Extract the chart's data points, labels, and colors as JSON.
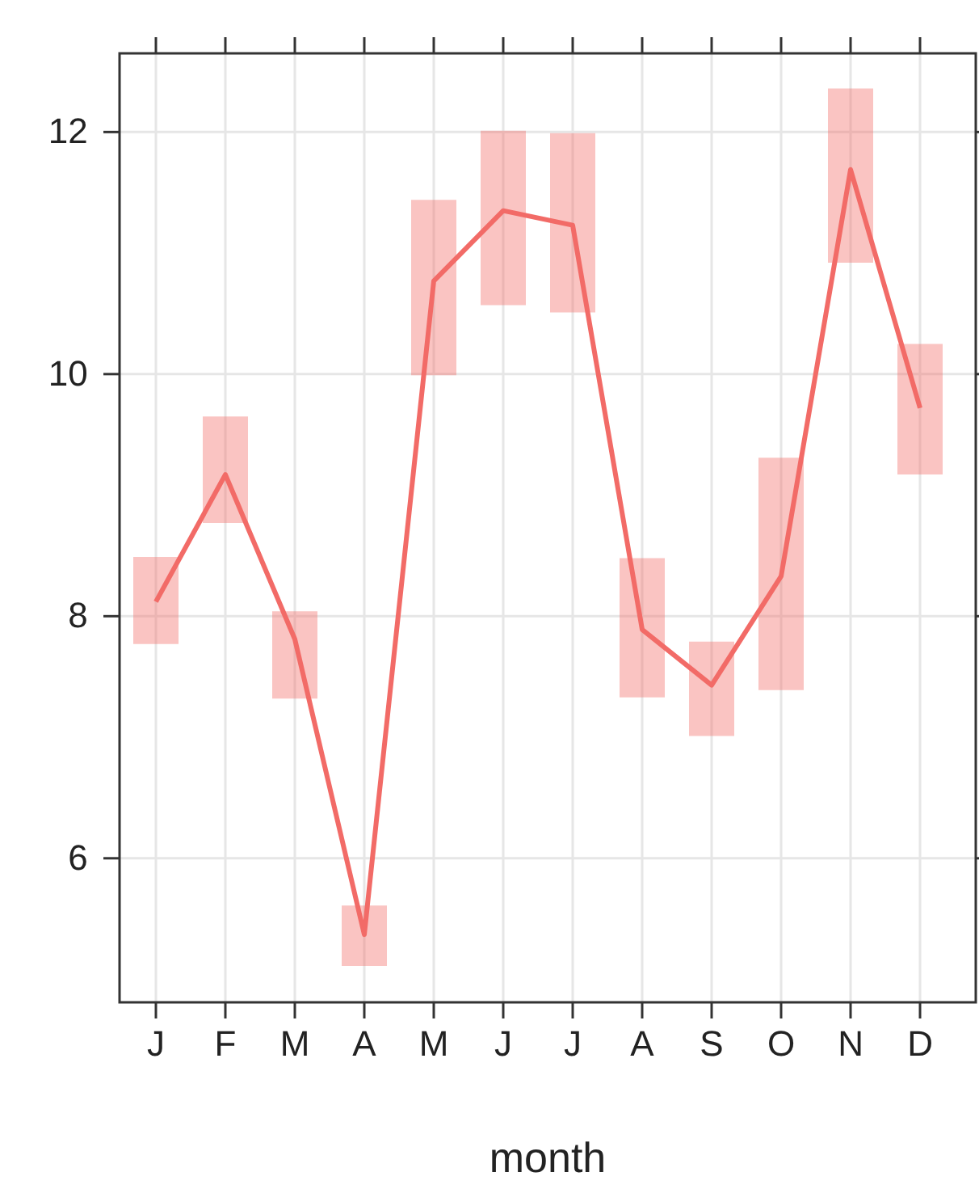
{
  "chart_data": {
    "type": "line",
    "xlabel": "month",
    "categories": [
      "J",
      "F",
      "M",
      "A",
      "M",
      "J",
      "J",
      "A",
      "S",
      "O",
      "N",
      "D"
    ],
    "series": [
      {
        "color": "#f26b67",
        "values": [
          8.12,
          9.17,
          7.81,
          5.37,
          10.77,
          11.35,
          11.23,
          7.89,
          7.43,
          8.33,
          11.69,
          9.72
        ],
        "errors": [
          [
            7.77,
            8.49
          ],
          [
            8.77,
            9.65
          ],
          [
            7.32,
            8.04
          ],
          [
            5.11,
            5.61
          ],
          [
            9.99,
            11.44
          ],
          [
            10.57,
            12.01
          ],
          [
            10.51,
            11.99
          ],
          [
            7.33,
            8.48
          ],
          [
            7.01,
            7.79
          ],
          [
            7.39,
            9.31
          ],
          [
            10.92,
            12.36
          ],
          [
            9.17,
            10.25
          ]
        ]
      }
    ],
    "ylim": [
      4.81,
      12.65
    ],
    "yticks": [
      6,
      8,
      10,
      12
    ],
    "grid": true,
    "line_style": "solid",
    "marker": "none"
  }
}
